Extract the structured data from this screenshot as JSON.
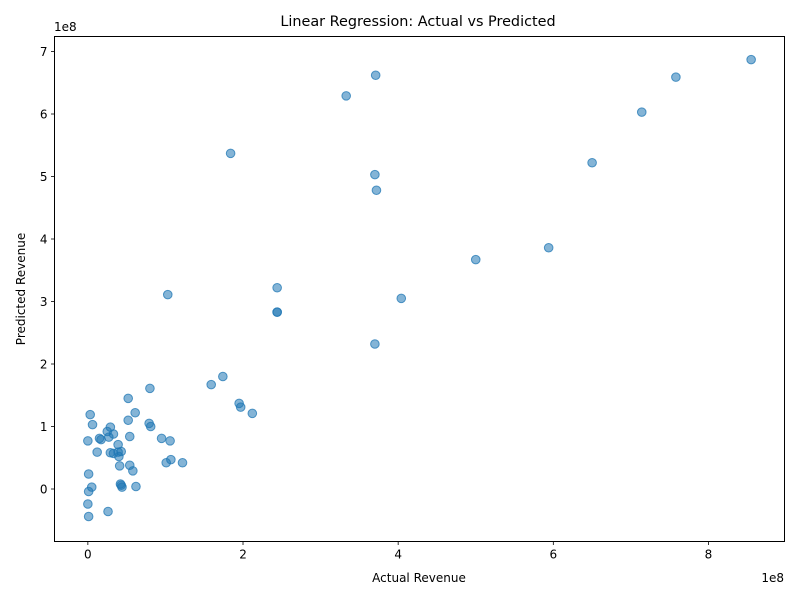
{
  "chart_data": {
    "type": "scatter",
    "title": "Linear Regression: Actual vs Predicted",
    "xlabel": "Actual Revenue",
    "ylabel": "Predicted Revenue",
    "x_offset_label": "1e8",
    "y_offset_label": "1e8",
    "xlim": [
      -0.43,
      8.98
    ],
    "ylim": [
      -0.84,
      7.24
    ],
    "x_ticks": [
      {
        "value": 0,
        "label": "0"
      },
      {
        "value": 2,
        "label": "2"
      },
      {
        "value": 4,
        "label": "4"
      },
      {
        "value": 6,
        "label": "6"
      },
      {
        "value": 8,
        "label": "8"
      }
    ],
    "y_ticks": [
      {
        "value": 0,
        "label": "0"
      },
      {
        "value": 1,
        "label": "1"
      },
      {
        "value": 2,
        "label": "2"
      },
      {
        "value": 3,
        "label": "3"
      },
      {
        "value": 4,
        "label": "4"
      },
      {
        "value": 5,
        "label": "5"
      },
      {
        "value": 6,
        "label": "6"
      },
      {
        "value": 7,
        "label": "7"
      }
    ],
    "grid": false,
    "marker_color": "#1f77b4",
    "marker_alpha": 0.55,
    "units_note": "values in units of 1e8",
    "points": [
      [
        8.55,
        6.87
      ],
      [
        7.58,
        6.59
      ],
      [
        7.14,
        6.03
      ],
      [
        6.5,
        5.22
      ],
      [
        5.94,
        3.86
      ],
      [
        5.0,
        3.67
      ],
      [
        4.04,
        3.05
      ],
      [
        3.72,
        4.78
      ],
      [
        3.7,
        5.03
      ],
      [
        3.71,
        6.62
      ],
      [
        3.33,
        6.29
      ],
      [
        3.7,
        2.32
      ],
      [
        2.44,
        3.22
      ],
      [
        2.44,
        2.83
      ],
      [
        2.44,
        2.83
      ],
      [
        1.84,
        5.37
      ],
      [
        1.74,
        1.8
      ],
      [
        1.59,
        1.67
      ],
      [
        1.95,
        1.37
      ],
      [
        1.97,
        1.31
      ],
      [
        2.12,
        1.21
      ],
      [
        1.03,
        3.11
      ],
      [
        0.8,
        1.61
      ],
      [
        0.79,
        1.05
      ],
      [
        0.81,
        1.0
      ],
      [
        0.61,
        1.22
      ],
      [
        0.52,
        1.45
      ],
      [
        0.52,
        1.1
      ],
      [
        0.54,
        0.84
      ],
      [
        0.95,
        0.81
      ],
      [
        1.06,
        0.77
      ],
      [
        1.07,
        0.47
      ],
      [
        1.01,
        0.42
      ],
      [
        1.22,
        0.42
      ],
      [
        0.39,
        0.71
      ],
      [
        0.43,
        0.6
      ],
      [
        0.39,
        0.59
      ],
      [
        0.4,
        0.52
      ],
      [
        0.41,
        0.37
      ],
      [
        0.54,
        0.38
      ],
      [
        0.58,
        0.29
      ],
      [
        0.62,
        0.04
      ],
      [
        0.42,
        0.08
      ],
      [
        0.43,
        0.06
      ],
      [
        0.44,
        0.03
      ],
      [
        0.29,
        0.99
      ],
      [
        0.25,
        0.92
      ],
      [
        0.33,
        0.88
      ],
      [
        0.27,
        0.83
      ],
      [
        0.15,
        0.81
      ],
      [
        0.17,
        0.79
      ],
      [
        0.12,
        0.59
      ],
      [
        0.29,
        0.58
      ],
      [
        0.33,
        0.57
      ],
      [
        0.03,
        1.19
      ],
      [
        0.06,
        1.03
      ],
      [
        0.0,
        0.77
      ],
      [
        0.01,
        0.24
      ],
      [
        0.05,
        0.03
      ],
      [
        0.01,
        -0.04
      ],
      [
        0.0,
        -0.24
      ],
      [
        0.26,
        -0.36
      ],
      [
        0.01,
        -0.44
      ]
    ]
  }
}
